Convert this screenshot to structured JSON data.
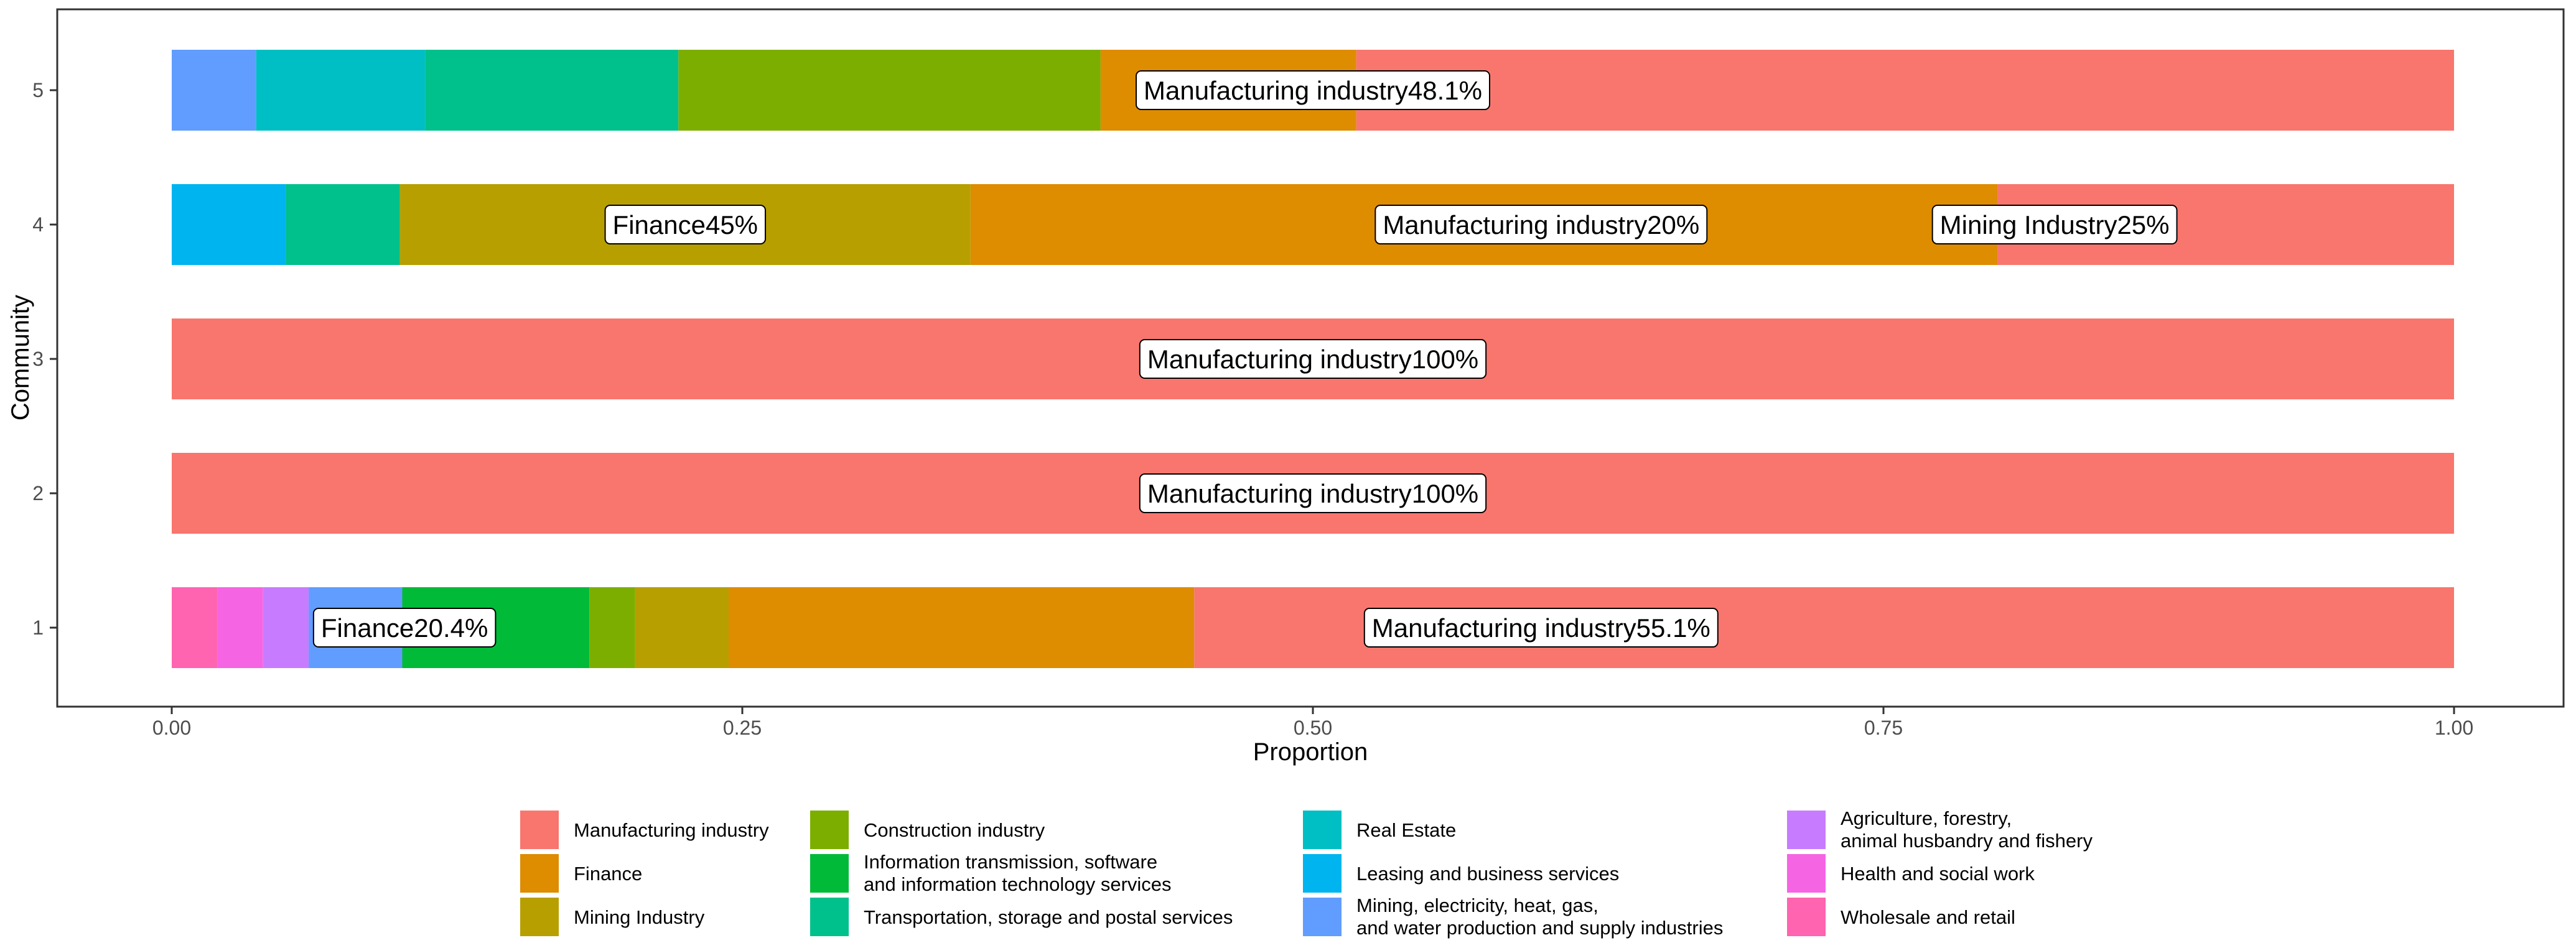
{
  "chart_data": {
    "type": "bar",
    "orientation": "horizontal",
    "stacked": true,
    "title": "",
    "xlabel": "Proportion",
    "ylabel": "Community",
    "xlim": [
      0,
      1
    ],
    "x_ticks": [
      "0.00",
      "0.25",
      "0.50",
      "0.75",
      "1.00"
    ],
    "grid": false,
    "legend_position": "bottom",
    "categories": [
      "Manufacturing industry",
      "Finance",
      "Mining Industry",
      "Construction industry",
      "Information transmission, software and information technology services",
      "Transportation, storage and postal services",
      "Real Estate",
      "Leasing and business services",
      "Mining, electricity, heat, gas, and water production and supply industries",
      "Agriculture, forestry, animal husbandry and fishery",
      "Health and social work",
      "Wholesale and retail"
    ],
    "legend": [
      {
        "lines": [
          "Manufacturing industry"
        ],
        "color": "#F8766D"
      },
      {
        "lines": [
          "Finance"
        ],
        "color": "#DE8C00"
      },
      {
        "lines": [
          "Mining Industry"
        ],
        "color": "#B79F00"
      },
      {
        "lines": [
          "Construction industry"
        ],
        "color": "#7CAE00"
      },
      {
        "lines": [
          "Information transmission, software",
          "and information technology services"
        ],
        "color": "#00BA38"
      },
      {
        "lines": [
          "Transportation, storage and postal services"
        ],
        "color": "#00C08B"
      },
      {
        "lines": [
          "Real Estate"
        ],
        "color": "#00BFC4"
      },
      {
        "lines": [
          "Leasing and business services"
        ],
        "color": "#00B4F0"
      },
      {
        "lines": [
          "Mining, electricity, heat, gas,",
          "and water production and supply industries"
        ],
        "color": "#619CFF"
      },
      {
        "lines": [
          "Agriculture, forestry,",
          "animal husbandry and fishery"
        ],
        "color": "#C77CFF"
      },
      {
        "lines": [
          "Health and social work"
        ],
        "color": "#F564E3"
      },
      {
        "lines": [
          "Wholesale and retail"
        ],
        "color": "#FF64B0"
      }
    ],
    "bars": [
      {
        "community": "5",
        "segments": [
          {
            "category": "Mining, electricity, heat, gas, and water production and supply industries",
            "value": 0.037
          },
          {
            "category": "Real Estate",
            "value": 0.074
          },
          {
            "category": "Transportation, storage and postal services",
            "value": 0.111
          },
          {
            "category": "Construction industry",
            "value": 0.185
          },
          {
            "category": "Finance",
            "value": 0.112
          },
          {
            "category": "Manufacturing industry",
            "value": 0.481
          }
        ]
      },
      {
        "community": "4",
        "segments": [
          {
            "category": "Leasing and business services",
            "value": 0.05
          },
          {
            "category": "Transportation, storage and postal services",
            "value": 0.05
          },
          {
            "category": "Mining Industry",
            "value": 0.25
          },
          {
            "category": "Finance",
            "value": 0.45
          },
          {
            "category": "Manufacturing industry",
            "value": 0.2
          }
        ]
      },
      {
        "community": "3",
        "segments": [
          {
            "category": "Manufacturing industry",
            "value": 1.0
          }
        ]
      },
      {
        "community": "2",
        "segments": [
          {
            "category": "Manufacturing industry",
            "value": 1.0
          }
        ]
      },
      {
        "community": "1",
        "segments": [
          {
            "category": "Wholesale and retail",
            "value": 0.02
          },
          {
            "category": "Health and social work",
            "value": 0.02
          },
          {
            "category": "Agriculture, forestry, animal husbandry and fishery",
            "value": 0.02
          },
          {
            "category": "Mining, electricity, heat, gas, and water production and supply industries",
            "value": 0.041
          },
          {
            "category": "Information transmission, software and information technology services",
            "value": 0.082
          },
          {
            "category": "Construction industry",
            "value": 0.02
          },
          {
            "category": "Mining Industry",
            "value": 0.041
          },
          {
            "category": "Finance",
            "value": 0.204
          },
          {
            "category": "Manufacturing industry",
            "value": 0.551
          }
        ]
      }
    ],
    "annotations": [
      {
        "community": "5",
        "x": 0.5,
        "text": "Manufacturing industry48.1%"
      },
      {
        "community": "4",
        "x": 0.225,
        "text": "Finance45%"
      },
      {
        "community": "4",
        "x": 0.6,
        "text": "Manufacturing industry20%"
      },
      {
        "community": "4",
        "x": 0.825,
        "text": "Mining Industry25%"
      },
      {
        "community": "3",
        "x": 0.5,
        "text": "Manufacturing industry100%"
      },
      {
        "community": "2",
        "x": 0.5,
        "text": "Manufacturing industry100%"
      },
      {
        "community": "1",
        "x": 0.102,
        "text": "Finance20.4%"
      },
      {
        "community": "1",
        "x": 0.6,
        "text": "Manufacturing industry55.1%"
      }
    ]
  }
}
